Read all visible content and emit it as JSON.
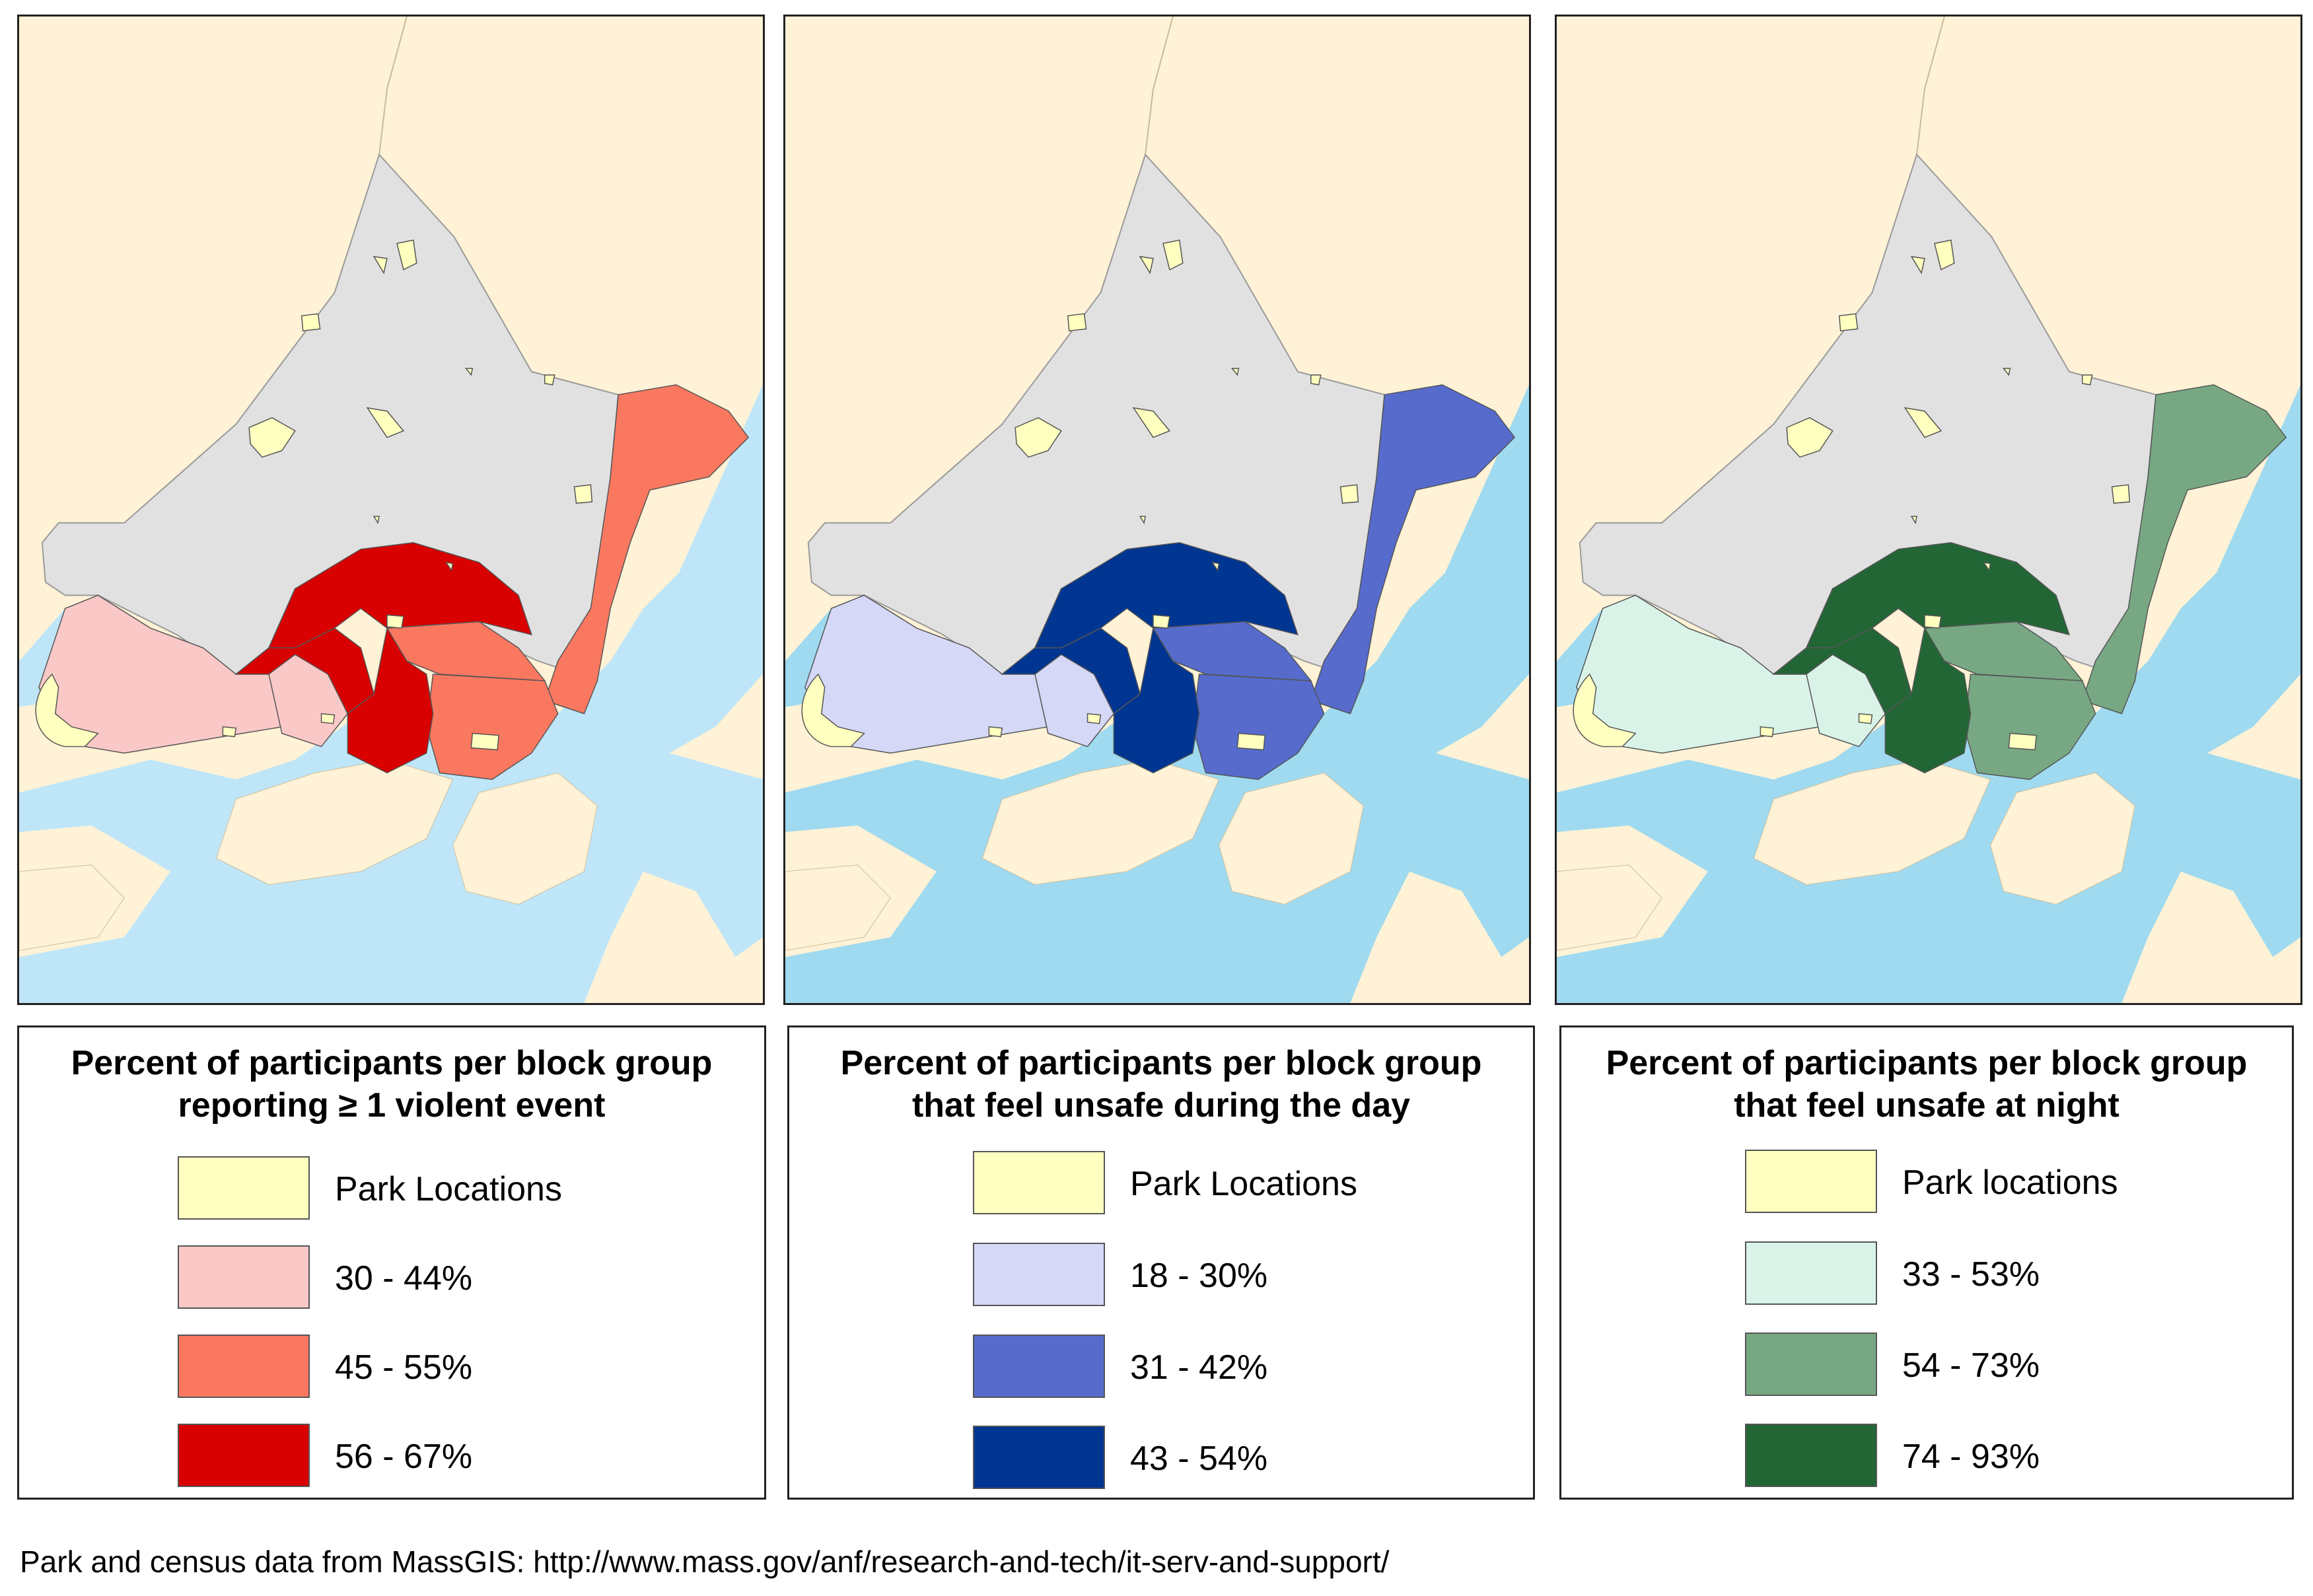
{
  "colors": {
    "land": "#fff2d6",
    "water": "#9fdaf0",
    "neighborhood": "#e1e1e1",
    "park": "#ffffc0"
  },
  "panels": [
    {
      "legend_title_line1": "Percent of participants per block group",
      "legend_title_line2": "reporting ≥ 1 violent event",
      "water_color": "#bfe6f8",
      "items": [
        {
          "label": "Park Locations",
          "color": "#ffffc0"
        },
        {
          "label": "30 - 44%",
          "color": "#fbc8c8"
        },
        {
          "label": "45 - 55%",
          "color": "#fa7860"
        },
        {
          "label": "56 - 67%",
          "color": "#d80000"
        }
      ]
    },
    {
      "legend_title_line1": "Percent of participants per block group",
      "legend_title_line2": "that feel unsafe during the day",
      "water_color": "#9fdaf0",
      "items": [
        {
          "label": "Park Locations",
          "color": "#ffffc0"
        },
        {
          "label": "18 - 30%",
          "color": "#d6d8f8"
        },
        {
          "label": "31 - 42%",
          "color": "#566bcc"
        },
        {
          "label": "43 - 54%",
          "color": "#003591"
        }
      ]
    },
    {
      "legend_title_line1": "Percent of participants per block group",
      "legend_title_line2": "that feel unsafe at night",
      "water_color": "#9fdaf0",
      "items": [
        {
          "label": "Park locations",
          "color": "#ffffc0"
        },
        {
          "label": "33 - 53%",
          "color": "#daf3e8"
        },
        {
          "label": "54 - 73%",
          "color": "#77a883"
        },
        {
          "label": "74 - 93%",
          "color": "#236636"
        }
      ]
    }
  ],
  "footer": {
    "source_text": "Park and census data from MassGIS: http://www.mass.gov/anf/research-and-tech/it-serv-and-support/"
  }
}
